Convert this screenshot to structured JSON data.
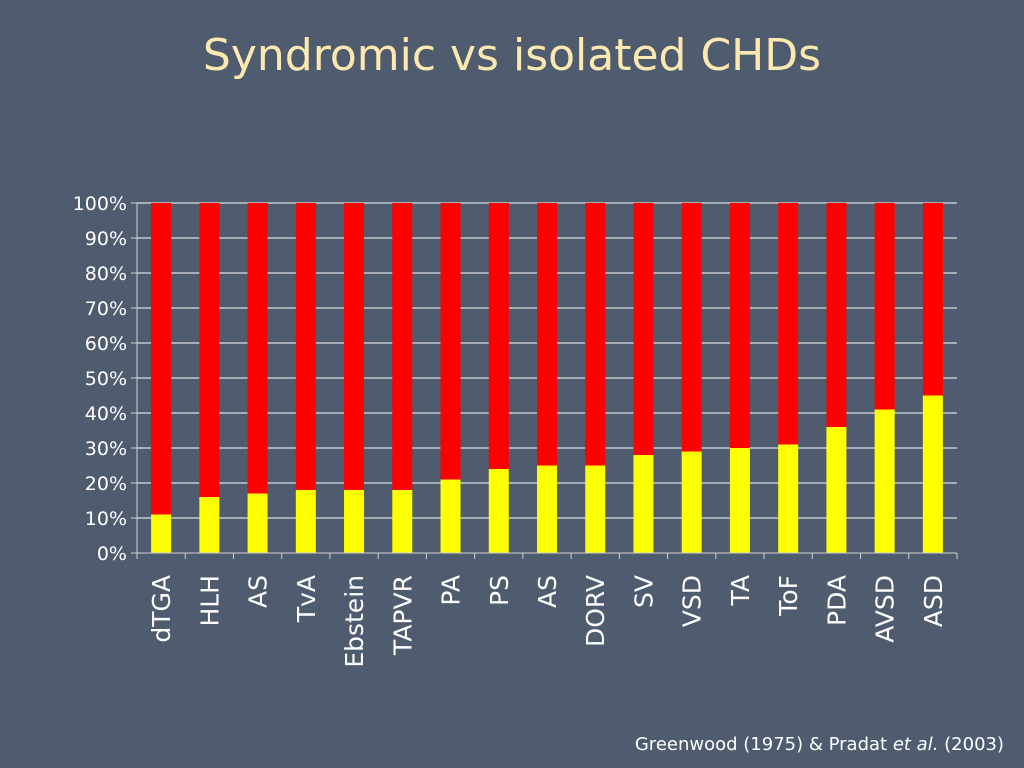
{
  "slide": {
    "title": "Syndromic vs isolated CHDs",
    "citation": {
      "part1": "Greenwood (1975) & Pradat ",
      "italic": "et al.",
      "part2": " (2003)"
    }
  },
  "colors": {
    "background": "#4f5b6e",
    "title": "#fde9b0",
    "syndromic": "#ffff00",
    "isolated": "#ff0000",
    "grid": "#ffffff"
  },
  "chart_data": {
    "type": "bar",
    "stacked": true,
    "normalized_percent": true,
    "categories": [
      "dTGA",
      "HLH",
      "AS",
      "TvA",
      "Ebstein",
      "TAPVR",
      "PA",
      "PS",
      "AS",
      "DORV",
      "SV",
      "VSD",
      "TA",
      "ToF",
      "PDA",
      "AVSD",
      "ASD"
    ],
    "series": [
      {
        "color": "#ffff00",
        "values": [
          11,
          16,
          17,
          18,
          18,
          18,
          21,
          24,
          25,
          25,
          28,
          29,
          30,
          31,
          36,
          41,
          45
        ]
      },
      {
        "color": "#ff0000",
        "values": [
          89,
          84,
          83,
          82,
          82,
          82,
          79,
          76,
          75,
          75,
          72,
          71,
          70,
          69,
          64,
          59,
          55
        ]
      }
    ],
    "yticks": [
      "0%",
      "10%",
      "20%",
      "30%",
      "40%",
      "50%",
      "60%",
      "70%",
      "80%",
      "90%",
      "100%"
    ],
    "ylim": [
      0,
      100
    ],
    "grid": true,
    "x_label_rotation": -90
  }
}
